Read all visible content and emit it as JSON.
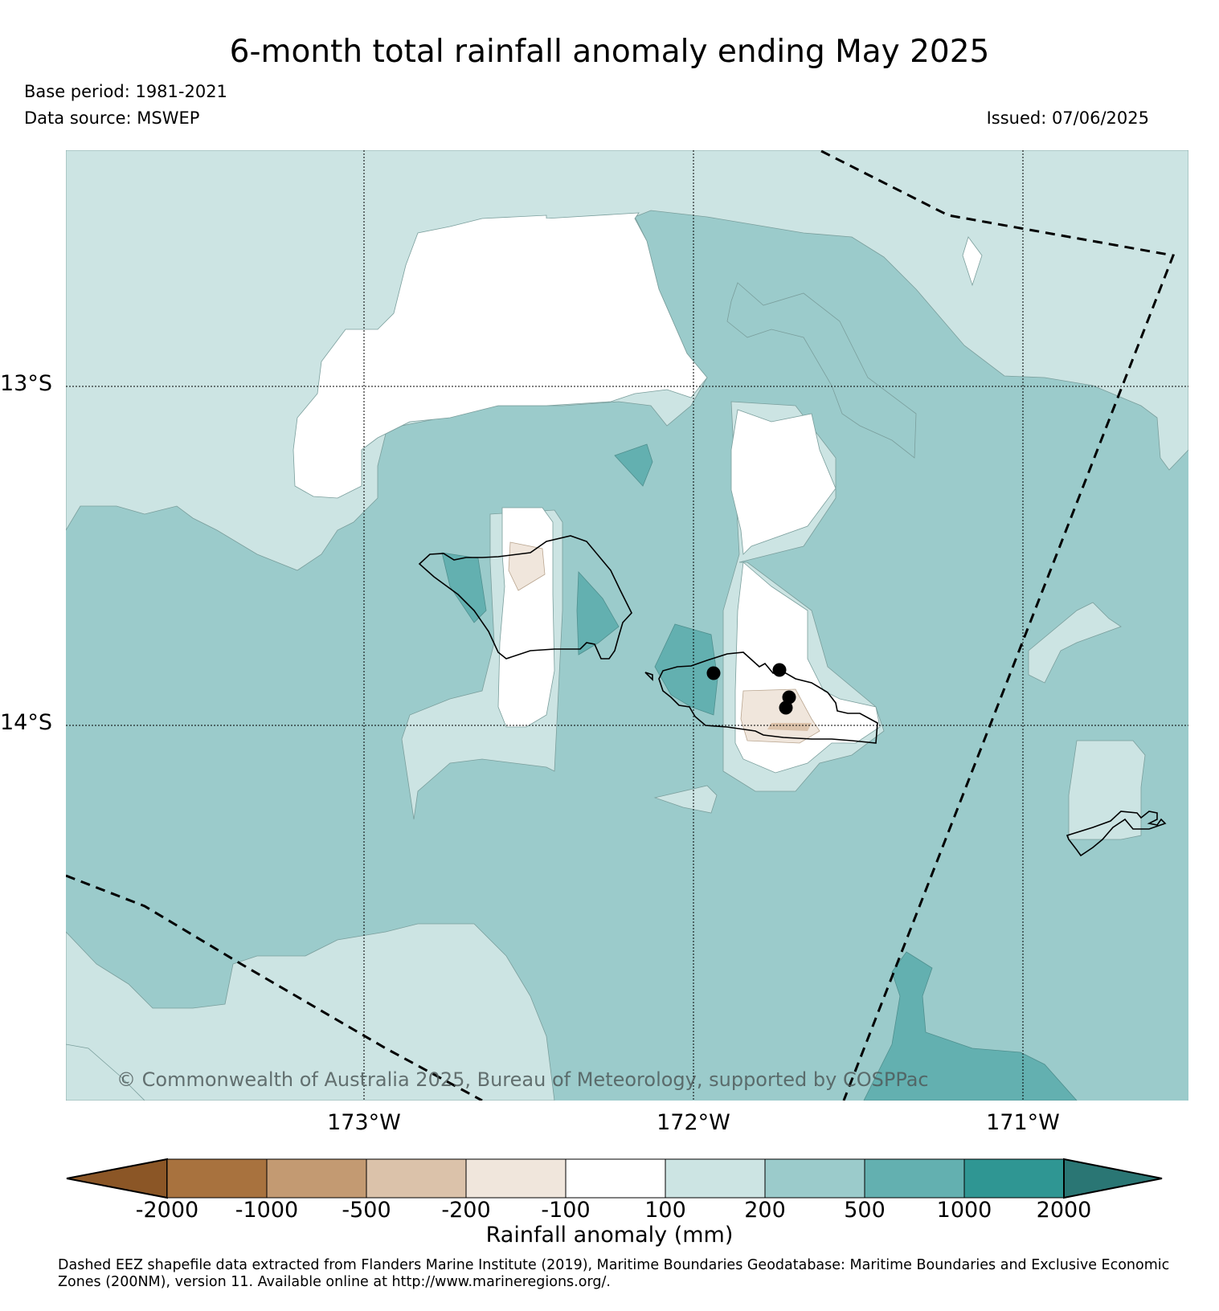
{
  "title": "6-month total rainfall anomaly ending May 2025",
  "base_period": "Base period: 1981-2021",
  "data_source": "Data source: MSWEP",
  "issued": "Issued: 07/06/2025",
  "copyright": "© Commonwealth of Australia 2025, Bureau of Meteorology, supported by COSPPac",
  "latitude_labels": [
    "13°S",
    "14°S"
  ],
  "longitude_labels": [
    "173°W",
    "172°W",
    "171°W"
  ],
  "colorbar": {
    "title": "Rainfall anomaly (mm)",
    "ticks": [
      "-2000",
      "-1000",
      "-500",
      "-200",
      "-100",
      "100",
      "200",
      "500",
      "1000",
      "2000"
    ],
    "colors": [
      "#8b5626",
      "#a8723e",
      "#c39a72",
      "#dbc2aa",
      "#f0e6dc",
      "#ffffff",
      "#cce4e3",
      "#9bcbcb",
      "#63b0b0",
      "#2f9693",
      "#2a7674"
    ]
  },
  "footnote": "Dashed EEZ shapefile data extracted from Flanders Marine Institute (2019), Maritime Boundaries Geodatabase: Maritime Boundaries and Exclusive Economic Zones (200NM), version 11. Available online at http://www.marineregions.org/."
}
